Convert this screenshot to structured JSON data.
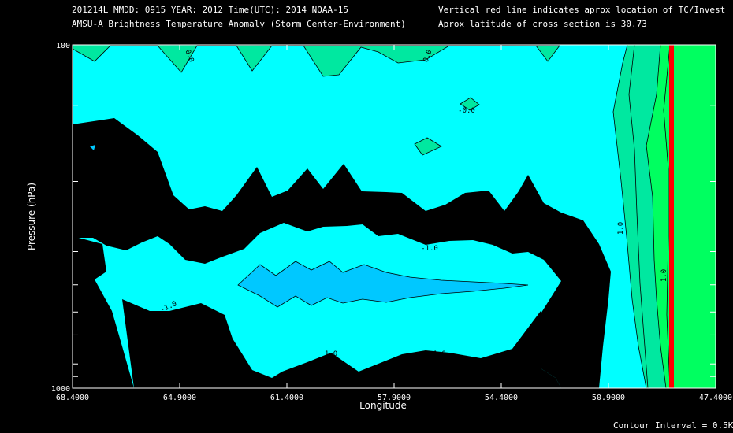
{
  "header": {
    "line1_left": "201214L  MMDD: 0915 YEAR: 2012 Time(UTC): 2014 NOAA-15",
    "line2_left": "AMSU-A Brightness Temperature Anomaly (Storm Center-Environment)",
    "line1_right": "Vertical red line indicates aprox location of TC/Invest",
    "line2_right": "Aprox latitude of cross section is 30.73"
  },
  "footer": {
    "contour_interval": "Contour Interval = 0.5K"
  },
  "colors": {
    "background": "#000000",
    "anomaly_0_to_0.5": "#00ffff",
    "anomaly_-0.5_to_0": "#00c8ff",
    "anomaly_0.5_to_1.0": "#00e8a0",
    "anomaly_above_1.0": "#00ff60",
    "below_-0.5_black": "#000000",
    "tc_line": "#ff0000"
  },
  "chart_data": {
    "type": "contour",
    "xlabel": "Longitude",
    "ylabel": "Pressure (hPa)",
    "x_ticks": [
      "68.4000",
      "64.9000",
      "61.4000",
      "57.9000",
      "54.4000",
      "50.9000",
      "47.4000"
    ],
    "x_range": [
      68.4,
      47.4
    ],
    "y_range": [
      1000,
      100
    ],
    "y_scale": "log",
    "y_ticks": [
      "100",
      "1000"
    ],
    "y_minor_ticks_hpa": [
      150,
      250,
      400,
      500,
      600,
      700,
      850,
      925
    ],
    "tc_longitude": 48.0,
    "contour_labels": [
      "0.0",
      "0.0",
      "-0.0",
      "1.0",
      "1.0",
      "1.0",
      "-1.0",
      "-1.0",
      "-1.0"
    ],
    "contour_interval_k": 0.5
  }
}
